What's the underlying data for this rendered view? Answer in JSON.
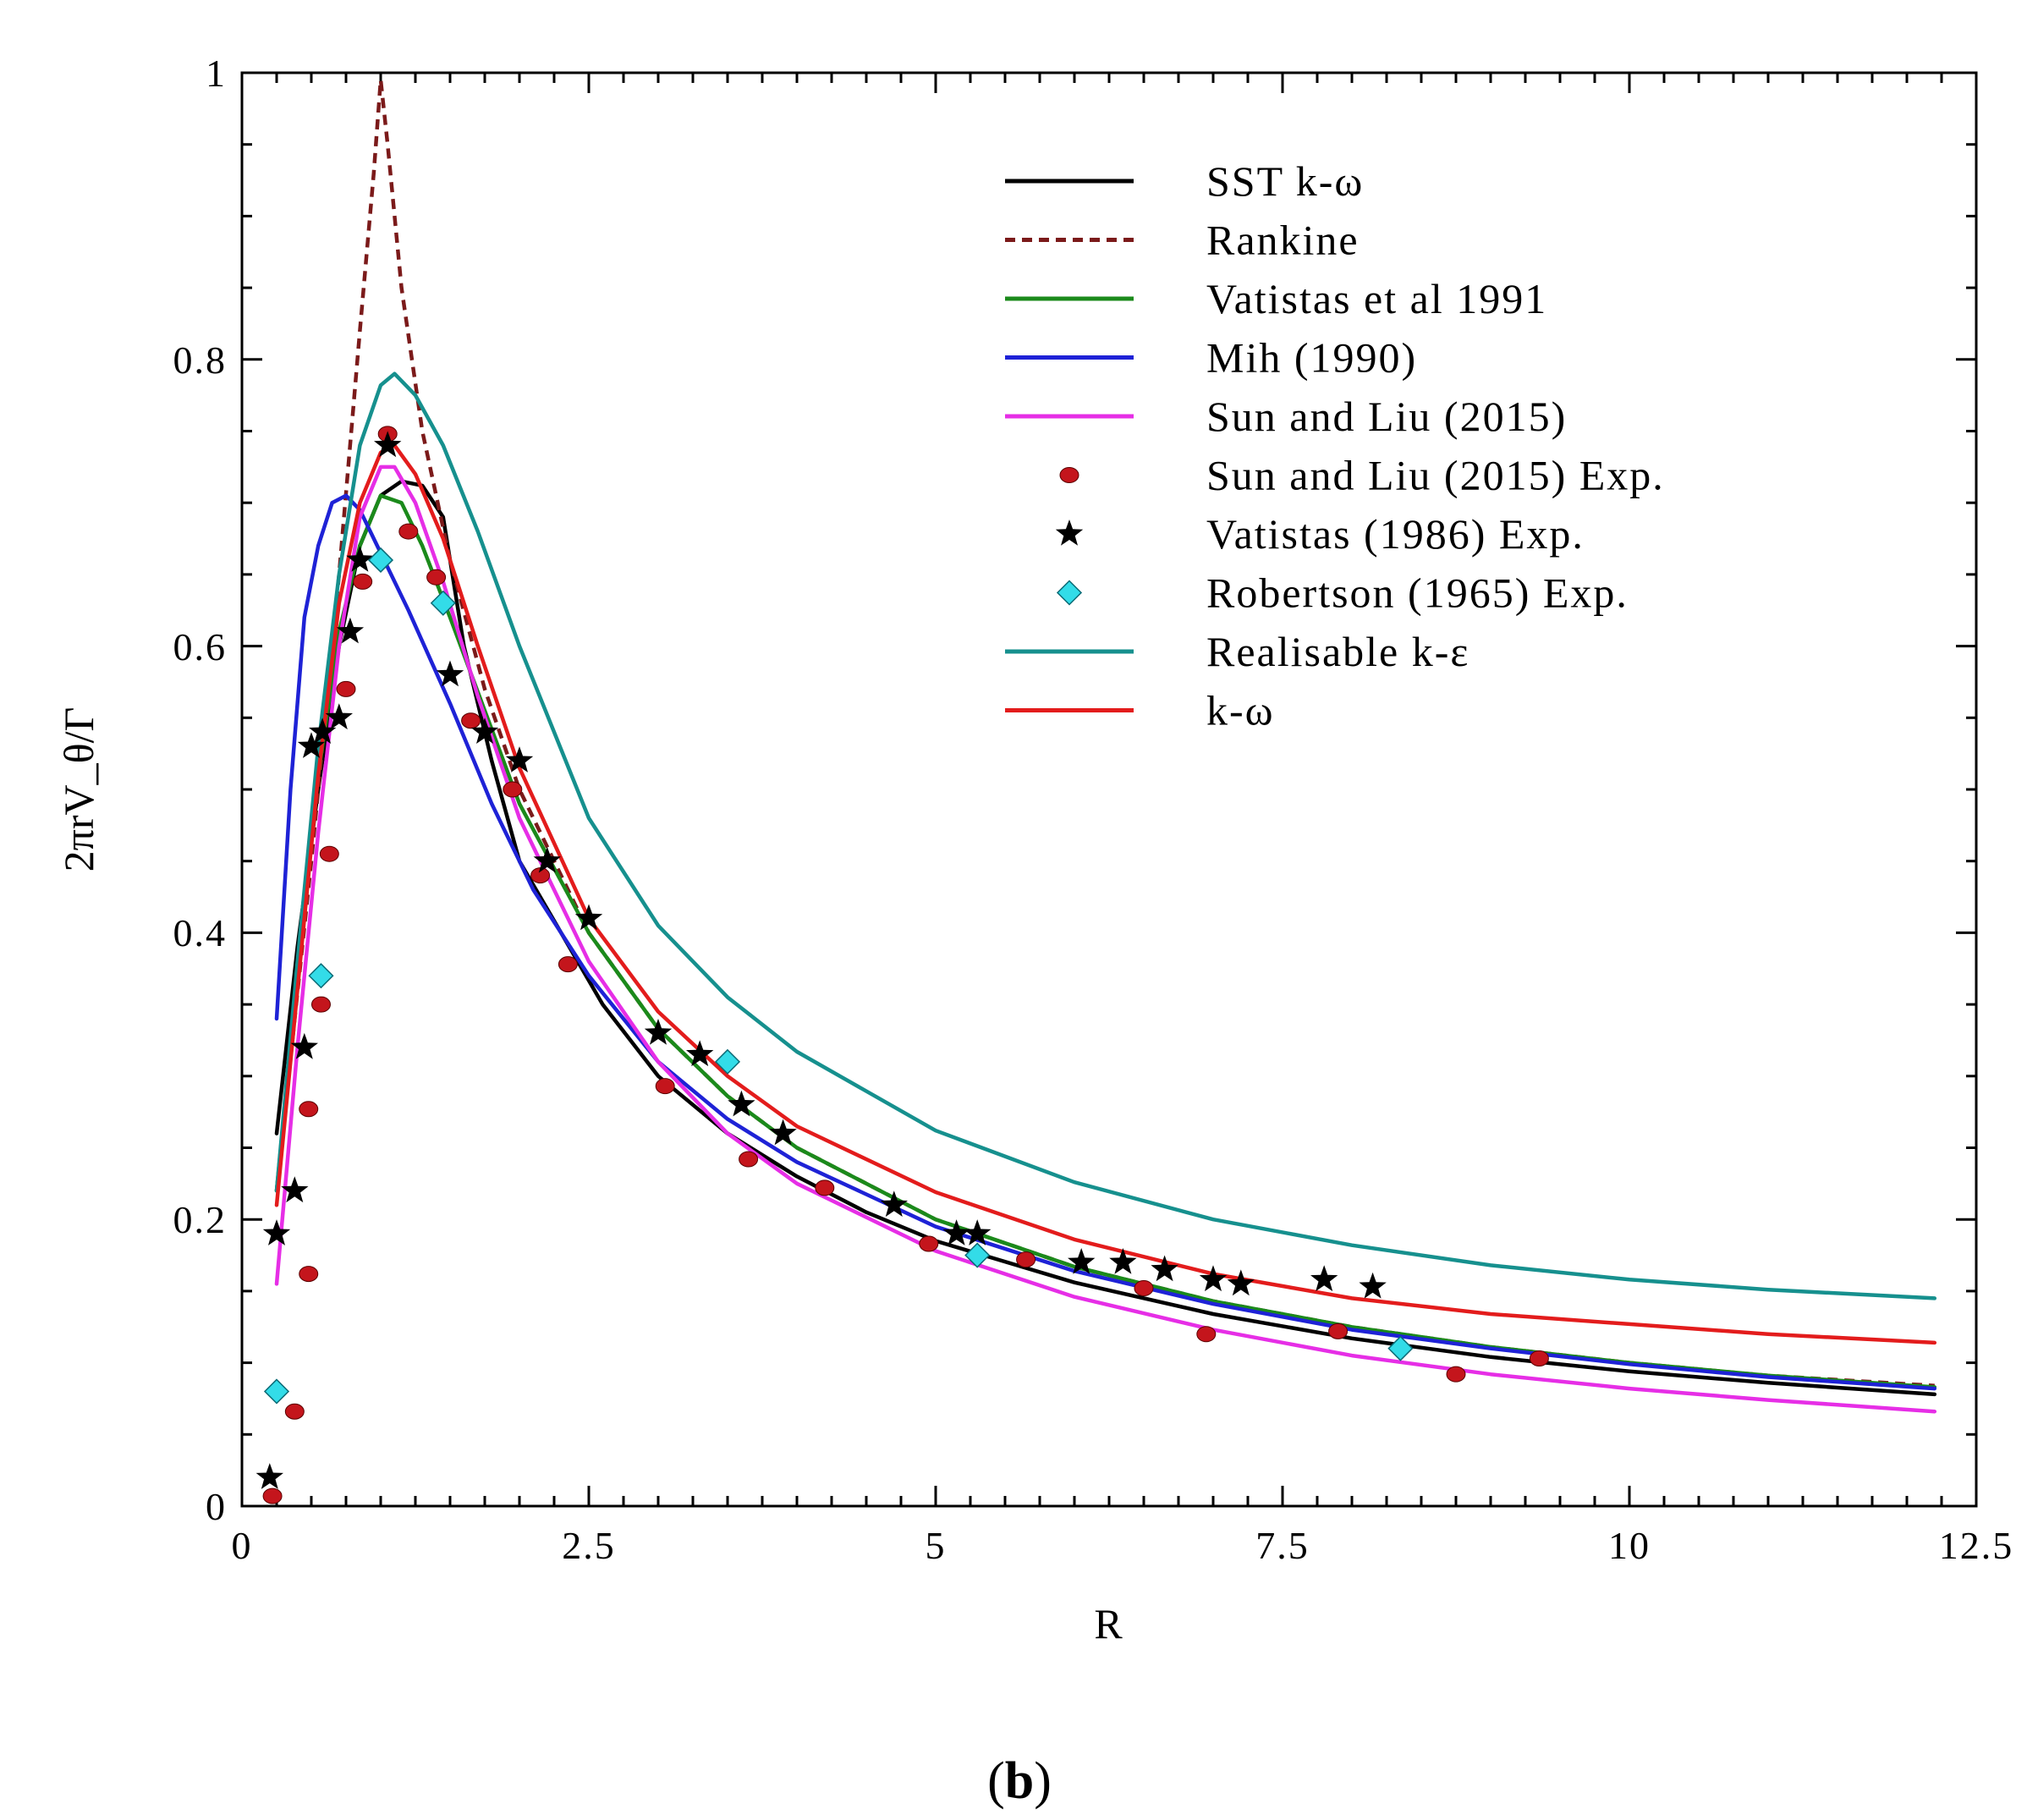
{
  "chart_data": {
    "type": "line",
    "title": "",
    "xlabel": "R",
    "ylabel": "2πrV_θ/Γ",
    "xlim": [
      0,
      12.5
    ],
    "ylim": [
      0,
      1
    ],
    "xticks": [
      0,
      2.5,
      5,
      7.5,
      10,
      12.5
    ],
    "xtick_labels": [
      "0",
      "2.5",
      "5",
      "7.5",
      "10",
      "12.5"
    ],
    "yticks": [
      0,
      0.2,
      0.4,
      0.6,
      0.8,
      1
    ],
    "ytick_labels": [
      "0",
      "0.2",
      "0.4",
      "0.6",
      "0.8",
      "1"
    ],
    "grid": false,
    "legend_position": "top-right",
    "caption": "(b)",
    "caption_letter": "b",
    "series": [
      {
        "name": "SST k-ω",
        "kind": "line",
        "color": "#000000",
        "dash": "solid",
        "points": [
          [
            0.25,
            0.26
          ],
          [
            0.4,
            0.39
          ],
          [
            0.55,
            0.5
          ],
          [
            0.7,
            0.6
          ],
          [
            0.85,
            0.67
          ],
          [
            1.0,
            0.705
          ],
          [
            1.15,
            0.715
          ],
          [
            1.3,
            0.712
          ],
          [
            1.45,
            0.69
          ],
          [
            1.6,
            0.6
          ],
          [
            1.8,
            0.52
          ],
          [
            2.0,
            0.45
          ],
          [
            2.3,
            0.4
          ],
          [
            2.6,
            0.35
          ],
          [
            3.0,
            0.3
          ],
          [
            3.5,
            0.26
          ],
          [
            4.0,
            0.23
          ],
          [
            4.5,
            0.205
          ],
          [
            5.0,
            0.185
          ],
          [
            6.0,
            0.156
          ],
          [
            7.0,
            0.134
          ],
          [
            8.0,
            0.117
          ],
          [
            9.0,
            0.104
          ],
          [
            10.0,
            0.094
          ],
          [
            11.0,
            0.086
          ],
          [
            12.2,
            0.078
          ]
        ]
      },
      {
        "name": "Rankine",
        "kind": "line",
        "color": "#7b1a1a",
        "dash": "dashed",
        "points": [
          [
            0.25,
            0.22
          ],
          [
            0.5,
            0.45
          ],
          [
            0.7,
            0.65
          ],
          [
            0.85,
            0.82
          ],
          [
            0.95,
            0.93
          ],
          [
            1.0,
            0.995
          ],
          [
            1.05,
            0.95
          ],
          [
            1.15,
            0.85
          ],
          [
            1.3,
            0.75
          ],
          [
            1.5,
            0.66
          ],
          [
            1.75,
            0.57
          ],
          [
            2.0,
            0.5
          ],
          [
            2.5,
            0.4
          ],
          [
            3.0,
            0.333
          ],
          [
            3.5,
            0.286
          ],
          [
            4.0,
            0.25
          ],
          [
            5.0,
            0.2
          ],
          [
            6.0,
            0.167
          ],
          [
            7.0,
            0.143
          ],
          [
            8.0,
            0.125
          ],
          [
            9.0,
            0.111
          ],
          [
            10.0,
            0.1
          ],
          [
            11.0,
            0.091
          ],
          [
            12.2,
            0.084
          ]
        ]
      },
      {
        "name": "Vatistas et al 1991",
        "kind": "line",
        "color": "#1b8a1b",
        "dash": "solid",
        "points": [
          [
            0.25,
            0.22
          ],
          [
            0.4,
            0.37
          ],
          [
            0.55,
            0.51
          ],
          [
            0.7,
            0.61
          ],
          [
            0.85,
            0.67
          ],
          [
            1.0,
            0.705
          ],
          [
            1.15,
            0.7
          ],
          [
            1.3,
            0.67
          ],
          [
            1.5,
            0.62
          ],
          [
            1.75,
            0.555
          ],
          [
            2.0,
            0.49
          ],
          [
            2.5,
            0.4
          ],
          [
            3.0,
            0.333
          ],
          [
            3.5,
            0.286
          ],
          [
            4.0,
            0.25
          ],
          [
            5.0,
            0.2
          ],
          [
            6.0,
            0.167
          ],
          [
            7.0,
            0.143
          ],
          [
            8.0,
            0.125
          ],
          [
            9.0,
            0.111
          ],
          [
            10.0,
            0.1
          ],
          [
            11.0,
            0.091
          ],
          [
            12.2,
            0.083
          ]
        ]
      },
      {
        "name": "Mih (1990)",
        "kind": "line",
        "color": "#1e22d6",
        "dash": "solid",
        "points": [
          [
            0.25,
            0.34
          ],
          [
            0.35,
            0.5
          ],
          [
            0.45,
            0.62
          ],
          [
            0.55,
            0.67
          ],
          [
            0.65,
            0.7
          ],
          [
            0.75,
            0.705
          ],
          [
            0.85,
            0.695
          ],
          [
            1.0,
            0.665
          ],
          [
            1.2,
            0.625
          ],
          [
            1.5,
            0.56
          ],
          [
            1.8,
            0.49
          ],
          [
            2.1,
            0.43
          ],
          [
            2.5,
            0.37
          ],
          [
            3.0,
            0.31
          ],
          [
            3.5,
            0.27
          ],
          [
            4.0,
            0.24
          ],
          [
            5.0,
            0.195
          ],
          [
            6.0,
            0.164
          ],
          [
            7.0,
            0.141
          ],
          [
            8.0,
            0.123
          ],
          [
            9.0,
            0.11
          ],
          [
            10.0,
            0.099
          ],
          [
            11.0,
            0.09
          ],
          [
            12.2,
            0.082
          ]
        ]
      },
      {
        "name": "Sun and Liu (2015)",
        "kind": "line",
        "color": "#e62ee6",
        "dash": "solid",
        "points": [
          [
            0.25,
            0.155
          ],
          [
            0.4,
            0.32
          ],
          [
            0.55,
            0.47
          ],
          [
            0.7,
            0.6
          ],
          [
            0.85,
            0.69
          ],
          [
            1.0,
            0.725
          ],
          [
            1.1,
            0.725
          ],
          [
            1.25,
            0.7
          ],
          [
            1.45,
            0.645
          ],
          [
            1.7,
            0.565
          ],
          [
            2.0,
            0.48
          ],
          [
            2.5,
            0.38
          ],
          [
            3.0,
            0.31
          ],
          [
            3.5,
            0.26
          ],
          [
            4.0,
            0.225
          ],
          [
            5.0,
            0.178
          ],
          [
            6.0,
            0.146
          ],
          [
            7.0,
            0.123
          ],
          [
            8.0,
            0.105
          ],
          [
            9.0,
            0.092
          ],
          [
            10.0,
            0.082
          ],
          [
            11.0,
            0.074
          ],
          [
            12.2,
            0.066
          ]
        ]
      },
      {
        "name": "Sun and Liu (2015) Exp.",
        "kind": "marker",
        "marker": "circle",
        "color": "#c4151c",
        "points": [
          [
            0.22,
            0.007
          ],
          [
            0.38,
            0.066
          ],
          [
            0.48,
            0.162
          ],
          [
            0.48,
            0.277
          ],
          [
            0.57,
            0.35
          ],
          [
            0.63,
            0.455
          ],
          [
            0.75,
            0.57
          ],
          [
            0.87,
            0.645
          ],
          [
            1.05,
            0.748
          ],
          [
            1.2,
            0.68
          ],
          [
            1.4,
            0.648
          ],
          [
            1.65,
            0.548
          ],
          [
            1.95,
            0.5
          ],
          [
            2.15,
            0.44
          ],
          [
            2.35,
            0.378
          ],
          [
            3.05,
            0.293
          ],
          [
            3.65,
            0.242
          ],
          [
            4.2,
            0.222
          ],
          [
            4.95,
            0.183
          ],
          [
            5.65,
            0.172
          ],
          [
            6.5,
            0.152
          ],
          [
            6.95,
            0.12
          ],
          [
            7.9,
            0.122
          ],
          [
            8.75,
            0.092
          ],
          [
            9.35,
            0.103
          ]
        ]
      },
      {
        "name": "Vatistas (1986) Exp.",
        "kind": "marker",
        "marker": "star",
        "color": "#000000",
        "points": [
          [
            0.2,
            0.02
          ],
          [
            0.25,
            0.19
          ],
          [
            0.38,
            0.22
          ],
          [
            0.45,
            0.32
          ],
          [
            0.5,
            0.53
          ],
          [
            0.58,
            0.54
          ],
          [
            0.7,
            0.55
          ],
          [
            0.78,
            0.61
          ],
          [
            0.85,
            0.66
          ],
          [
            1.05,
            0.74
          ],
          [
            1.5,
            0.58
          ],
          [
            1.75,
            0.54
          ],
          [
            2.0,
            0.52
          ],
          [
            2.2,
            0.45
          ],
          [
            2.5,
            0.41
          ],
          [
            3.0,
            0.33
          ],
          [
            3.3,
            0.315
          ],
          [
            3.6,
            0.28
          ],
          [
            3.9,
            0.26
          ],
          [
            4.7,
            0.21
          ],
          [
            5.15,
            0.19
          ],
          [
            5.3,
            0.19
          ],
          [
            6.05,
            0.17
          ],
          [
            6.35,
            0.17
          ],
          [
            6.65,
            0.165
          ],
          [
            7.0,
            0.158
          ],
          [
            7.2,
            0.155
          ],
          [
            7.8,
            0.158
          ],
          [
            8.15,
            0.153
          ]
        ]
      },
      {
        "name": "Robertson (1965)  Exp.",
        "kind": "marker",
        "marker": "diamond",
        "color": "#33dce8",
        "points": [
          [
            0.25,
            0.08
          ],
          [
            0.57,
            0.37
          ],
          [
            1.0,
            0.66
          ],
          [
            1.45,
            0.63
          ],
          [
            3.5,
            0.31
          ],
          [
            5.3,
            0.175
          ],
          [
            8.35,
            0.11
          ]
        ]
      },
      {
        "name": "Realisable k-ε",
        "kind": "line",
        "color": "#16908e",
        "dash": "solid",
        "points": [
          [
            0.25,
            0.22
          ],
          [
            0.4,
            0.38
          ],
          [
            0.55,
            0.53
          ],
          [
            0.7,
            0.65
          ],
          [
            0.85,
            0.74
          ],
          [
            1.0,
            0.782
          ],
          [
            1.1,
            0.79
          ],
          [
            1.25,
            0.775
          ],
          [
            1.45,
            0.74
          ],
          [
            1.7,
            0.68
          ],
          [
            2.0,
            0.6
          ],
          [
            2.5,
            0.48
          ],
          [
            3.0,
            0.405
          ],
          [
            3.5,
            0.355
          ],
          [
            4.0,
            0.317
          ],
          [
            5.0,
            0.262
          ],
          [
            6.0,
            0.226
          ],
          [
            7.0,
            0.2
          ],
          [
            8.0,
            0.182
          ],
          [
            9.0,
            0.168
          ],
          [
            10.0,
            0.158
          ],
          [
            11.0,
            0.151
          ],
          [
            12.2,
            0.145
          ]
        ]
      },
      {
        "name": " k-ω",
        "kind": "line",
        "color": "#e31c1c",
        "dash": "solid",
        "points": [
          [
            0.25,
            0.21
          ],
          [
            0.4,
            0.36
          ],
          [
            0.55,
            0.51
          ],
          [
            0.7,
            0.63
          ],
          [
            0.85,
            0.7
          ],
          [
            1.0,
            0.735
          ],
          [
            1.1,
            0.74
          ],
          [
            1.25,
            0.72
          ],
          [
            1.45,
            0.675
          ],
          [
            1.7,
            0.6
          ],
          [
            2.0,
            0.515
          ],
          [
            2.5,
            0.41
          ],
          [
            3.0,
            0.345
          ],
          [
            3.5,
            0.3
          ],
          [
            4.0,
            0.265
          ],
          [
            5.0,
            0.219
          ],
          [
            6.0,
            0.186
          ],
          [
            7.0,
            0.162
          ],
          [
            8.0,
            0.145
          ],
          [
            9.0,
            0.134
          ],
          [
            10.0,
            0.127
          ],
          [
            11.0,
            0.12
          ],
          [
            12.2,
            0.114
          ]
        ]
      }
    ]
  }
}
